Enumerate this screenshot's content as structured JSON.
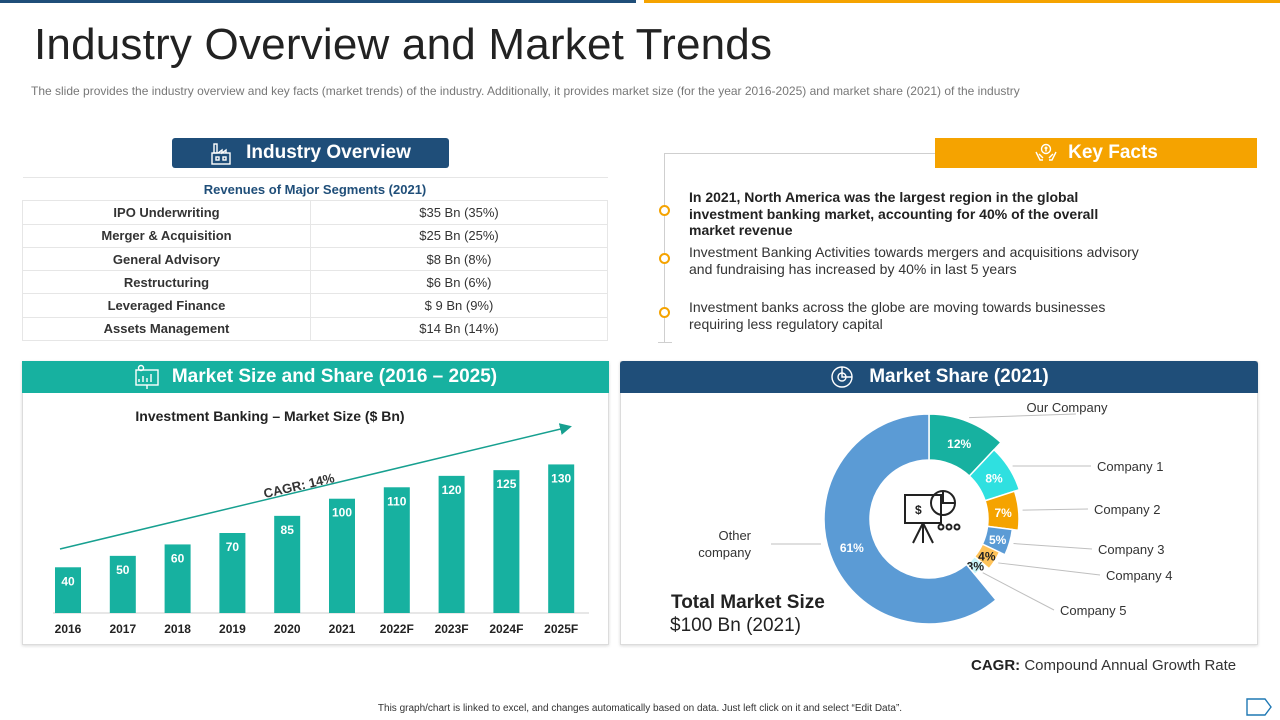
{
  "title": "Industry Overview and Market Trends",
  "subtitle": "The slide provides  the industry overview  and key facts (market trends) of the industry. Additionally, it provides  market size (for the year 2016-2025)  and market share (2021)  of the industry",
  "colors": {
    "navy": "#1f4e79",
    "orange": "#f5a300",
    "teal": "#17b1a0",
    "blue": "#5b9bd5"
  },
  "industry_overview": {
    "header": "Industry Overview",
    "icon": "factory-icon",
    "table_title": "Revenues of Major Segments (2021)",
    "rows": [
      {
        "segment": "IPO Underwriting",
        "value": "$35 Bn (35%)"
      },
      {
        "segment": "Merger & Acquisition",
        "value": "$25 Bn (25%)"
      },
      {
        "segment": "General Advisory",
        "value": "$8 Bn (8%)"
      },
      {
        "segment": "Restructuring",
        "value": "$6 Bn (6%)"
      },
      {
        "segment": "Leveraged Finance",
        "value": "$ 9 Bn (9%)"
      },
      {
        "segment": "Assets  Management",
        "value": "$14 Bn (14%)"
      }
    ]
  },
  "key_facts": {
    "header": "Key Facts",
    "icon": "hands-coin-icon",
    "facts": [
      "In 2021, North America was the largest region in the global investment banking market, accounting for 40% of the overall market revenue",
      "Investment Banking Activities towards mergers and acquisitions advisory and fundraising has increased by 40% in last 5 years",
      "Investment banks across the globe are moving towards businesses requiring less regulatory capital"
    ]
  },
  "market_size": {
    "header": "Market Size and Share (2016 – 2025)",
    "icon": "chart-presentation-icon"
  },
  "market_share": {
    "header": "Market Share (2021)",
    "icon": "pie-analytics-icon",
    "total_label": "Total Market Size",
    "total_value": "$100 Bn (2021)"
  },
  "cagr_note": {
    "label": "CAGR:",
    "text": "Compound Annual Growth Rate"
  },
  "footer": "This graph/chart is linked to excel, and changes automatically based on data. Just left click on it and select “Edit Data”.",
  "chart_data": [
    {
      "type": "bar",
      "title": "Investment Banking – Market Size ($ Bn)",
      "categories": [
        "2016",
        "2017",
        "2018",
        "2019",
        "2020",
        "2021",
        "2022F",
        "2023F",
        "2024F",
        "2025F"
      ],
      "values": [
        40,
        50,
        60,
        70,
        85,
        100,
        110,
        120,
        125,
        130
      ],
      "annotation": "CAGR: 14%",
      "ylim": [
        0,
        140
      ],
      "color": "#17b1a0"
    },
    {
      "type": "pie",
      "title": "Market Share (2021)",
      "slices": [
        {
          "label": "Our Company",
          "value": 12,
          "display": "12%",
          "color": "#17b1a0"
        },
        {
          "label": "Company  1",
          "value": 8,
          "display": "8%",
          "color": "#2fe0e0"
        },
        {
          "label": "Company  2",
          "value": 7,
          "display": "7%",
          "color": "#f5a300"
        },
        {
          "label": "Company  3",
          "value": 5,
          "display": "5%",
          "color": "#5b9bd5"
        },
        {
          "label": "Company  4",
          "value": 4,
          "display": "4%",
          "color": "#ffc35a"
        },
        {
          "label": "Company  5",
          "value": 3,
          "display": "3%",
          "color": "#c9f5f8"
        },
        {
          "label": "Other company",
          "value": 61,
          "display": "61%",
          "color": "#5b9bd5"
        }
      ]
    }
  ]
}
